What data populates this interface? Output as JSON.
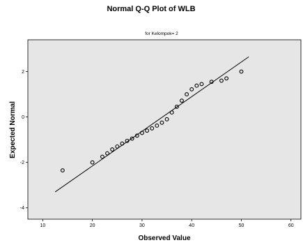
{
  "chart_data": {
    "type": "scatter",
    "title": "Normal Q-Q Plot of WLB",
    "subtitle": "for Kelompok= 2",
    "xlabel": "Observed Value",
    "ylabel": "Expected Normal",
    "xlim": [
      7,
      62
    ],
    "ylim": [
      -4.5,
      3.4
    ],
    "xticks": [
      10,
      20,
      30,
      40,
      50,
      60
    ],
    "yticks": [
      -4,
      -2,
      0,
      2
    ],
    "xtick_labels": [
      "10",
      "20",
      "30",
      "40",
      "50",
      "60"
    ],
    "ytick_labels": [
      "-4",
      "-2",
      "0",
      "2"
    ],
    "grid": false,
    "plot_background": "#e6e6e6",
    "marker_color": "#000000",
    "reference_line": {
      "x": [
        12.5,
        51.5
      ],
      "y": [
        -3.3,
        2.65
      ]
    },
    "points": [
      {
        "x": 14,
        "y": -2.35
      },
      {
        "x": 20,
        "y": -2.0
      },
      {
        "x": 22,
        "y": -1.75
      },
      {
        "x": 23,
        "y": -1.6
      },
      {
        "x": 24,
        "y": -1.43
      },
      {
        "x": 25,
        "y": -1.3
      },
      {
        "x": 26,
        "y": -1.17
      },
      {
        "x": 27,
        "y": -1.05
      },
      {
        "x": 28,
        "y": -0.95
      },
      {
        "x": 29,
        "y": -0.82
      },
      {
        "x": 30,
        "y": -0.7
      },
      {
        "x": 31,
        "y": -0.6
      },
      {
        "x": 32,
        "y": -0.5
      },
      {
        "x": 33,
        "y": -0.38
      },
      {
        "x": 34,
        "y": -0.25
      },
      {
        "x": 35,
        "y": -0.1
      },
      {
        "x": 36,
        "y": 0.2
      },
      {
        "x": 37,
        "y": 0.45
      },
      {
        "x": 38,
        "y": 0.72
      },
      {
        "x": 39,
        "y": 1.0
      },
      {
        "x": 40,
        "y": 1.22
      },
      {
        "x": 41,
        "y": 1.38
      },
      {
        "x": 42,
        "y": 1.45
      },
      {
        "x": 44,
        "y": 1.55
      },
      {
        "x": 46,
        "y": 1.6
      },
      {
        "x": 47,
        "y": 1.7
      },
      {
        "x": 50,
        "y": 2.0
      }
    ]
  }
}
